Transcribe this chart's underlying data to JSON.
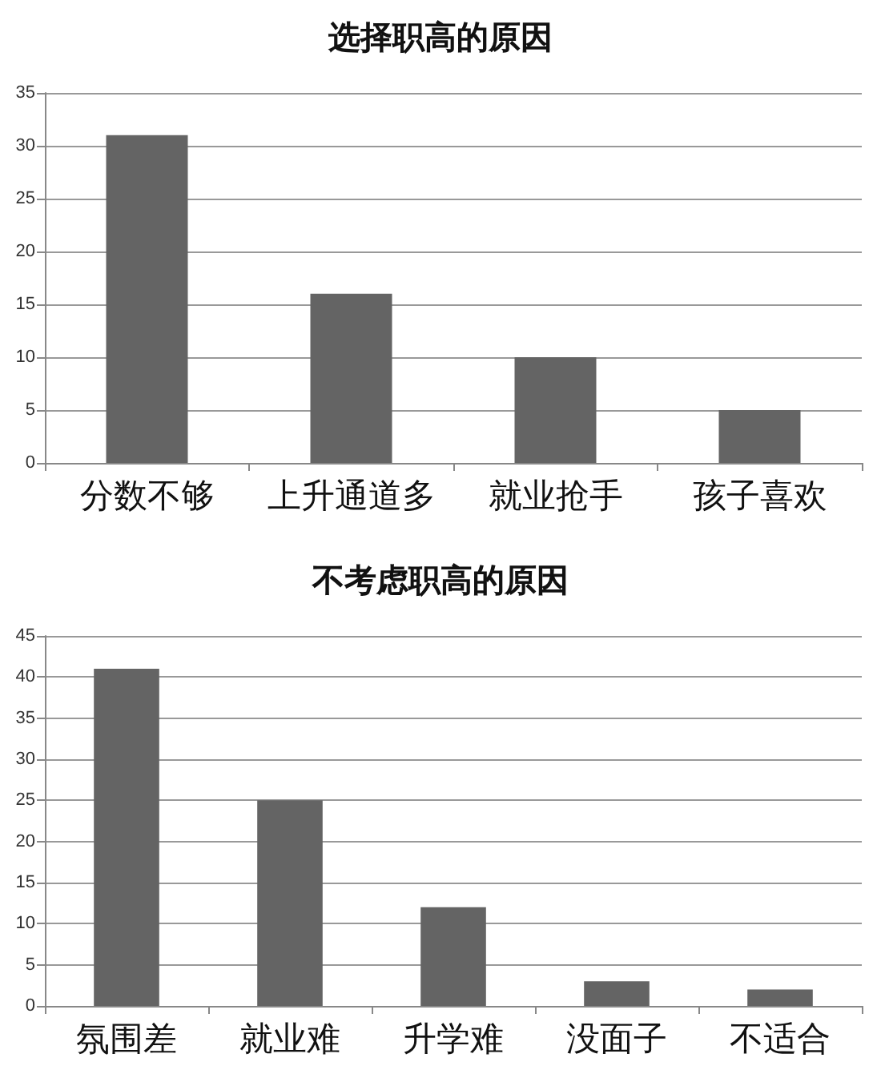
{
  "chart_data": [
    {
      "type": "bar",
      "title": "选择职高的原因",
      "categories": [
        "分数不够",
        "上升通道多",
        "就业抢手",
        "孩子喜欢"
      ],
      "values": [
        31,
        16,
        10,
        5
      ],
      "color": "#646464",
      "ylim": [
        0,
        35
      ],
      "yticks": [
        0,
        5,
        10,
        15,
        20,
        25,
        30,
        35
      ],
      "grid": "y"
    },
    {
      "type": "bar",
      "title": "不考虑职高的原因",
      "categories": [
        "氛围差",
        "就业难",
        "升学难",
        "没面子",
        "不适合"
      ],
      "values": [
        41,
        25,
        12,
        3,
        2
      ],
      "color": "#646464",
      "ylim": [
        0,
        45
      ],
      "yticks": [
        0,
        5,
        10,
        15,
        20,
        25,
        30,
        35,
        40,
        45
      ],
      "grid": "y"
    }
  ]
}
